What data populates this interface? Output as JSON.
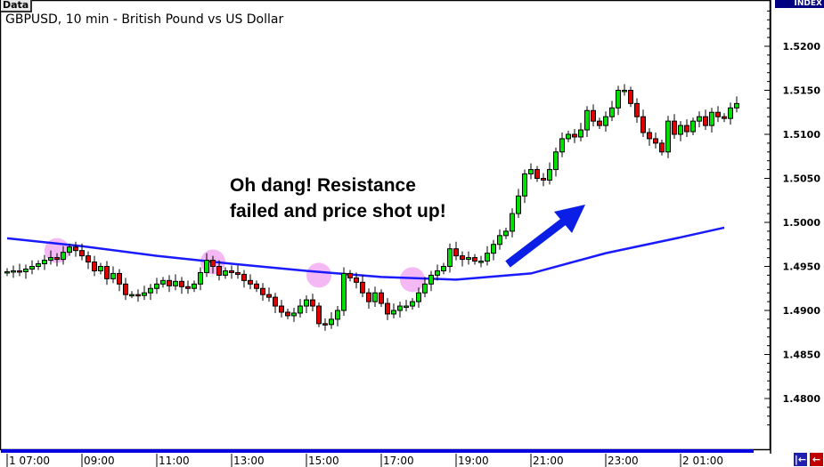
{
  "header": {
    "data_tab": "Data",
    "title": "GBPUSD, 10 min - British Pound vs US Dollar",
    "index_label": "INDEX"
  },
  "annotation": {
    "line1": "Oh dang! Resistance",
    "line2": "failed and price shot up!"
  },
  "buttons": {
    "scroll_start": "|←",
    "scroll_back": "←"
  },
  "colors": {
    "bull": "#00e000",
    "bear": "#e00000",
    "ma": "#1a1aff",
    "highlight": "#f0a0f0",
    "arrow": "#0a1ee6",
    "axis_header": "#000080"
  },
  "chart_data": {
    "type": "candlestick",
    "title": "GBPUSD, 10 min - British Pound vs US Dollar",
    "interval_minutes": 10,
    "ylim": [
      1.476,
      1.525
    ],
    "yticks": [
      "1.5200",
      "1.5150",
      "1.5100",
      "1.5050",
      "1.5000",
      "1.4950",
      "1.4900",
      "1.4850",
      "1.4800"
    ],
    "xticks": [
      "1 07:00",
      "09:00",
      "11:00",
      "13:00",
      "15:00",
      "17:00",
      "19:00",
      "21:00",
      "23:00",
      "2 01:00"
    ],
    "close": [
      1.4944,
      1.4945,
      1.4944,
      1.4947,
      1.495,
      1.4953,
      1.4957,
      1.496,
      1.4958,
      1.4966,
      1.4972,
      1.4968,
      1.4962,
      1.4955,
      1.4945,
      1.495,
      1.4936,
      1.4942,
      1.493,
      1.4918,
      1.4918,
      1.4917,
      1.492,
      1.4925,
      1.493,
      1.4934,
      1.4928,
      1.4933,
      1.4927,
      1.4925,
      1.493,
      1.4943,
      1.4957,
      1.495,
      1.494,
      1.4945,
      1.4943,
      1.4941,
      1.4934,
      1.493,
      1.4925,
      1.4918,
      1.4915,
      1.4905,
      1.4898,
      1.4894,
      1.4897,
      1.4905,
      1.4912,
      1.4905,
      1.4885,
      1.4884,
      1.489,
      1.49,
      1.4942,
      1.4937,
      1.4932,
      1.492,
      1.491,
      1.492,
      1.4908,
      1.4896,
      1.49,
      1.4905,
      1.4905,
      1.491,
      1.492,
      1.493,
      1.494,
      1.4945,
      1.495,
      1.497,
      1.4962,
      1.4958,
      1.496,
      1.4956,
      1.4956,
      1.4965,
      1.4975,
      1.4985,
      1.499,
      1.501,
      1.503,
      1.5055,
      1.506,
      1.505,
      1.5048,
      1.506,
      1.508,
      1.5095,
      1.51,
      1.5097,
      1.5105,
      1.5127,
      1.5115,
      1.511,
      1.512,
      1.513,
      1.515,
      1.515,
      1.5135,
      1.512,
      1.5102,
      1.5095,
      1.509,
      1.508,
      1.5115,
      1.51,
      1.511,
      1.5103,
      1.5115,
      1.512,
      1.511,
      1.5125,
      1.512,
      1.5118,
      1.513,
      1.5135
    ],
    "moving_average": {
      "times": [
        "07:00",
        "09:00",
        "11:00",
        "13:00",
        "15:00",
        "17:00",
        "19:00",
        "21:00",
        "23:00",
        "01:00",
        "02:10"
      ],
      "values": [
        1.4982,
        1.4973,
        1.4962,
        1.4953,
        1.4945,
        1.4938,
        1.4935,
        1.4942,
        1.4965,
        1.4983,
        1.4994
      ]
    },
    "highlights": [
      {
        "time": "08:20",
        "price": 1.4968
      },
      {
        "time": "12:30",
        "price": 1.4955
      },
      {
        "time": "15:20",
        "price": 1.494
      },
      {
        "time": "17:50",
        "price": 1.4935
      }
    ],
    "grid": false
  }
}
